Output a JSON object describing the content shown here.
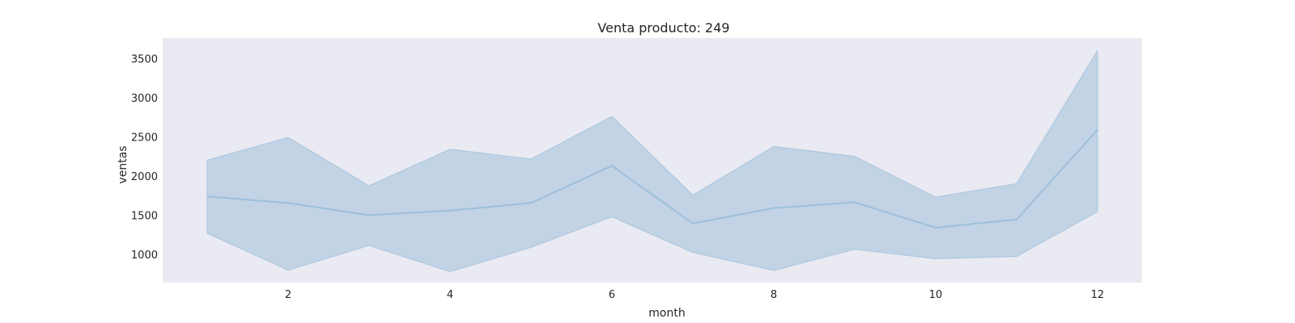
{
  "chart_data": {
    "type": "line",
    "title": "Venta producto: 249",
    "xlabel": "month",
    "ylabel": "ventas",
    "x": [
      1,
      2,
      3,
      4,
      5,
      6,
      7,
      8,
      9,
      10,
      11,
      12
    ],
    "series": [
      {
        "values": [
          1740,
          1655,
          1500,
          1560,
          1655,
          2130,
          1395,
          1590,
          1665,
          1340,
          1445,
          2590
        ],
        "lower": [
          1270,
          800,
          1115,
          780,
          1090,
          1480,
          1025,
          795,
          1065,
          945,
          975,
          1545
        ],
        "upper": [
          2200,
          2490,
          1875,
          2340,
          2215,
          2760,
          1755,
          2375,
          2250,
          1730,
          1900,
          3600
        ]
      }
    ],
    "xlim": [
      0.45,
      12.55
    ],
    "ylim": [
      640,
      3760
    ],
    "xticks": [
      2,
      4,
      6,
      8,
      10,
      12
    ],
    "yticks": [
      1000,
      1500,
      2000,
      2500,
      3000,
      3500
    ],
    "grid": false,
    "colors": {
      "plot_background": "#EAEAF2",
      "line": "#9DBFDC",
      "band_fill": "#C2D3E5",
      "band_edge": "#AEC8E0"
    }
  }
}
